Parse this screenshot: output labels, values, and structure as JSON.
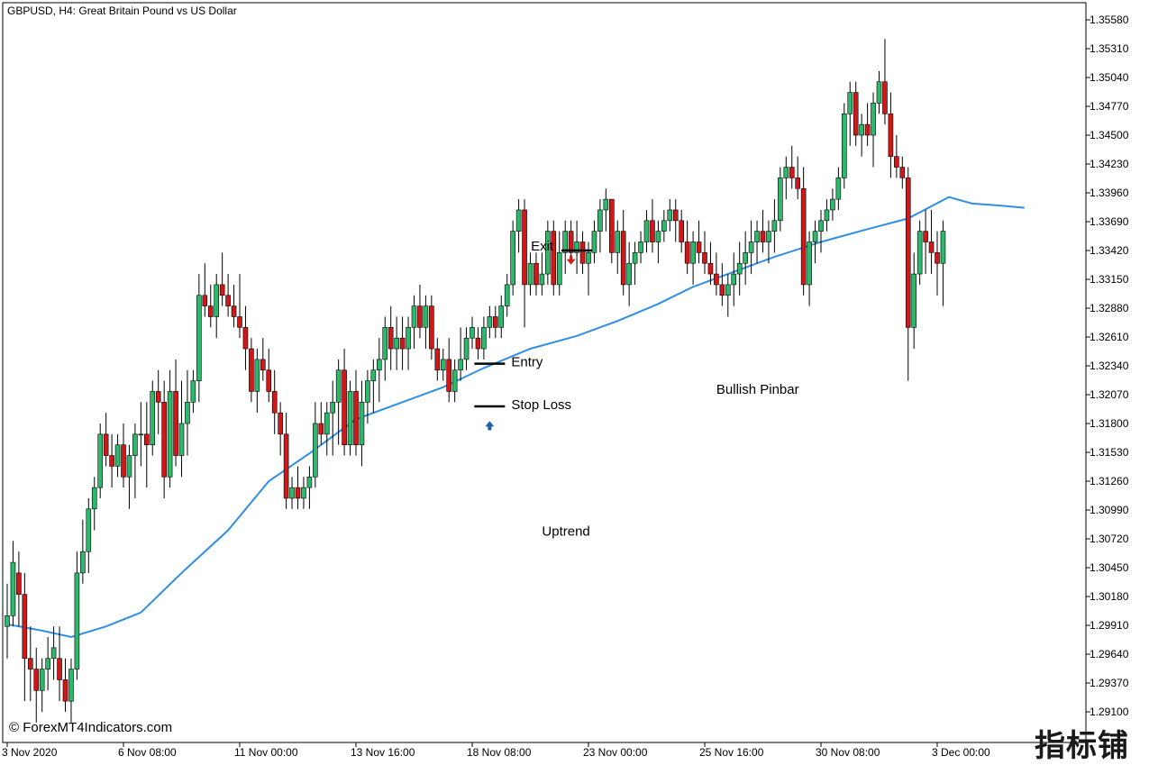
{
  "header": {
    "title": "GBPUSD, H4:  Great Britain Pound vs US Dollar"
  },
  "watermark": {
    "text": "© ForexMT4Indicators.com",
    "corner_logo": "指标铺"
  },
  "colors": {
    "bull": "#2eb86b",
    "bear": "#d01818",
    "ma": "#2f8fe8",
    "grid": "#000000",
    "background": "#ffffff"
  },
  "chart_data": {
    "type": "candlestick",
    "symbol": "GBPUSD",
    "timeframe": "H4",
    "title": "GBPUSD, H4:  Great Britain Pound vs US Dollar",
    "ylim": [
      1.2888,
      1.3572
    ],
    "y_ticks": [
      "1.35580",
      "1.35310",
      "1.35040",
      "1.34770",
      "1.34500",
      "1.34230",
      "1.33960",
      "1.33690",
      "1.33420",
      "1.33150",
      "1.32880",
      "1.32610",
      "1.32340",
      "1.32070",
      "1.31800",
      "1.31530",
      "1.31260",
      "1.30990",
      "1.30720",
      "1.30450",
      "1.30180",
      "1.29910",
      "1.29640",
      "1.29370",
      "1.29100"
    ],
    "x_ticks": [
      {
        "label": "3 Nov 2020",
        "index": 0
      },
      {
        "label": "6 Nov 08:00",
        "index": 20
      },
      {
        "label": "11 Nov 00:00",
        "index": 40
      },
      {
        "label": "13 Nov 16:00",
        "index": 60
      },
      {
        "label": "18 Nov 08:00",
        "index": 80
      },
      {
        "label": "23 Nov 00:00",
        "index": 100
      },
      {
        "label": "25 Nov 16:00",
        "index": 120
      },
      {
        "label": "30 Nov 08:00",
        "index": 140
      },
      {
        "label": "3 Dec 00:00",
        "index": 160
      }
    ],
    "candles": [
      [
        1.299,
        1.303,
        1.296,
        1.3
      ],
      [
        1.3,
        1.307,
        1.299,
        1.305
      ],
      [
        1.304,
        1.306,
        1.299,
        1.302
      ],
      [
        1.302,
        1.304,
        1.292,
        1.296
      ],
      [
        1.296,
        1.299,
        1.292,
        1.295
      ],
      [
        1.295,
        1.297,
        1.29,
        1.293
      ],
      [
        1.293,
        1.296,
        1.291,
        1.295
      ],
      [
        1.295,
        1.298,
        1.293,
        1.296
      ],
      [
        1.296,
        1.299,
        1.294,
        1.297
      ],
      [
        1.296,
        1.299,
        1.292,
        1.294
      ],
      [
        1.294,
        1.296,
        1.291,
        1.292
      ],
      [
        1.292,
        1.296,
        1.29,
        1.295
      ],
      [
        1.295,
        1.306,
        1.294,
        1.304
      ],
      [
        1.304,
        1.309,
        1.303,
        1.306
      ],
      [
        1.306,
        1.311,
        1.304,
        1.31
      ],
      [
        1.31,
        1.313,
        1.308,
        1.312
      ],
      [
        1.312,
        1.318,
        1.311,
        1.317
      ],
      [
        1.317,
        1.319,
        1.314,
        1.315
      ],
      [
        1.315,
        1.317,
        1.312,
        1.314
      ],
      [
        1.314,
        1.317,
        1.313,
        1.316
      ],
      [
        1.316,
        1.318,
        1.312,
        1.313
      ],
      [
        1.313,
        1.316,
        1.31,
        1.315
      ],
      [
        1.315,
        1.318,
        1.311,
        1.317
      ],
      [
        1.317,
        1.32,
        1.314,
        1.317
      ],
      [
        1.317,
        1.32,
        1.312,
        1.316
      ],
      [
        1.316,
        1.322,
        1.315,
        1.321
      ],
      [
        1.321,
        1.323,
        1.317,
        1.32
      ],
      [
        1.32,
        1.322,
        1.311,
        1.313
      ],
      [
        1.313,
        1.323,
        1.312,
        1.321
      ],
      [
        1.321,
        1.324,
        1.314,
        1.315
      ],
      [
        1.315,
        1.322,
        1.313,
        1.318
      ],
      [
        1.318,
        1.323,
        1.315,
        1.32
      ],
      [
        1.32,
        1.323,
        1.319,
        1.322
      ],
      [
        1.322,
        1.332,
        1.32,
        1.33
      ],
      [
        1.33,
        1.333,
        1.328,
        1.329
      ],
      [
        1.329,
        1.331,
        1.327,
        1.328
      ],
      [
        1.328,
        1.332,
        1.326,
        1.331
      ],
      [
        1.331,
        1.334,
        1.329,
        1.33
      ],
      [
        1.33,
        1.332,
        1.328,
        1.329
      ],
      [
        1.329,
        1.331,
        1.327,
        1.328
      ],
      [
        1.328,
        1.332,
        1.326,
        1.327
      ],
      [
        1.327,
        1.329,
        1.323,
        1.325
      ],
      [
        1.325,
        1.326,
        1.32,
        1.321
      ],
      [
        1.321,
        1.325,
        1.319,
        1.324
      ],
      [
        1.324,
        1.326,
        1.322,
        1.323
      ],
      [
        1.323,
        1.325,
        1.32,
        1.321
      ],
      [
        1.321,
        1.323,
        1.317,
        1.319
      ],
      [
        1.319,
        1.32,
        1.315,
        1.317
      ],
      [
        1.317,
        1.319,
        1.31,
        1.311
      ],
      [
        1.311,
        1.313,
        1.31,
        1.312
      ],
      [
        1.312,
        1.314,
        1.31,
        1.311
      ],
      [
        1.311,
        1.313,
        1.31,
        1.312
      ],
      [
        1.312,
        1.314,
        1.31,
        1.313
      ],
      [
        1.313,
        1.32,
        1.312,
        1.318
      ],
      [
        1.318,
        1.32,
        1.316,
        1.317
      ],
      [
        1.317,
        1.32,
        1.315,
        1.319
      ],
      [
        1.319,
        1.322,
        1.315,
        1.32
      ],
      [
        1.32,
        1.324,
        1.316,
        1.323
      ],
      [
        1.323,
        1.325,
        1.315,
        1.316
      ],
      [
        1.316,
        1.322,
        1.315,
        1.321
      ],
      [
        1.321,
        1.323,
        1.315,
        1.316
      ],
      [
        1.316,
        1.322,
        1.314,
        1.32
      ],
      [
        1.32,
        1.323,
        1.318,
        1.322
      ],
      [
        1.322,
        1.324,
        1.319,
        1.323
      ],
      [
        1.323,
        1.326,
        1.32,
        1.324
      ],
      [
        1.324,
        1.328,
        1.322,
        1.327
      ],
      [
        1.327,
        1.329,
        1.323,
        1.325
      ],
      [
        1.325,
        1.328,
        1.323,
        1.326
      ],
      [
        1.326,
        1.328,
        1.323,
        1.325
      ],
      [
        1.325,
        1.328,
        1.323,
        1.327
      ],
      [
        1.327,
        1.33,
        1.325,
        1.329
      ],
      [
        1.329,
        1.331,
        1.326,
        1.327
      ],
      [
        1.327,
        1.33,
        1.325,
        1.329
      ],
      [
        1.329,
        1.33,
        1.324,
        1.325
      ],
      [
        1.325,
        1.326,
        1.322,
        1.323
      ],
      [
        1.323,
        1.325,
        1.322,
        1.324
      ],
      [
        1.324,
        1.326,
        1.32,
        1.321
      ],
      [
        1.321,
        1.324,
        1.32,
        1.323
      ],
      [
        1.323,
        1.327,
        1.322,
        1.324
      ],
      [
        1.324,
        1.327,
        1.323,
        1.326
      ],
      [
        1.326,
        1.328,
        1.325,
        1.327
      ],
      [
        1.326,
        1.327,
        1.324,
        1.325
      ],
      [
        1.325,
        1.328,
        1.324,
        1.327
      ],
      [
        1.327,
        1.329,
        1.326,
        1.328
      ],
      [
        1.328,
        1.329,
        1.326,
        1.327
      ],
      [
        1.327,
        1.33,
        1.326,
        1.329
      ],
      [
        1.329,
        1.332,
        1.328,
        1.331
      ],
      [
        1.331,
        1.337,
        1.33,
        1.336
      ],
      [
        1.336,
        1.339,
        1.334,
        1.338
      ],
      [
        1.338,
        1.339,
        1.327,
        1.331
      ],
      [
        1.331,
        1.334,
        1.33,
        1.333
      ],
      [
        1.333,
        1.334,
        1.33,
        1.331
      ],
      [
        1.331,
        1.334,
        1.33,
        1.332
      ],
      [
        1.332,
        1.337,
        1.331,
        1.336
      ],
      [
        1.336,
        1.337,
        1.33,
        1.331
      ],
      [
        1.331,
        1.336,
        1.33,
        1.334
      ],
      [
        1.334,
        1.337,
        1.332,
        1.336
      ],
      [
        1.336,
        1.337,
        1.333,
        1.334
      ],
      [
        1.334,
        1.337,
        1.332,
        1.335
      ],
      [
        1.335,
        1.336,
        1.332,
        1.333
      ],
      [
        1.333,
        1.335,
        1.33,
        1.334
      ],
      [
        1.334,
        1.337,
        1.333,
        1.336
      ],
      [
        1.336,
        1.339,
        1.334,
        1.338
      ],
      [
        1.338,
        1.34,
        1.336,
        1.339
      ],
      [
        1.339,
        1.339,
        1.333,
        1.334
      ],
      [
        1.334,
        1.337,
        1.332,
        1.336
      ],
      [
        1.336,
        1.338,
        1.33,
        1.331
      ],
      [
        1.331,
        1.335,
        1.329,
        1.333
      ],
      [
        1.333,
        1.335,
        1.331,
        1.334
      ],
      [
        1.334,
        1.336,
        1.333,
        1.335
      ],
      [
        1.335,
        1.338,
        1.334,
        1.337
      ],
      [
        1.337,
        1.339,
        1.334,
        1.335
      ],
      [
        1.335,
        1.337,
        1.333,
        1.336
      ],
      [
        1.336,
        1.338,
        1.335,
        1.337
      ],
      [
        1.337,
        1.339,
        1.336,
        1.338
      ],
      [
        1.338,
        1.339,
        1.335,
        1.337
      ],
      [
        1.337,
        1.338,
        1.334,
        1.335
      ],
      [
        1.335,
        1.337,
        1.332,
        1.333
      ],
      [
        1.333,
        1.336,
        1.331,
        1.335
      ],
      [
        1.335,
        1.337,
        1.333,
        1.334
      ],
      [
        1.334,
        1.336,
        1.332,
        1.333
      ],
      [
        1.333,
        1.335,
        1.331,
        1.332
      ],
      [
        1.332,
        1.334,
        1.33,
        1.331
      ],
      [
        1.331,
        1.333,
        1.329,
        1.33
      ],
      [
        1.33,
        1.332,
        1.328,
        1.331
      ],
      [
        1.331,
        1.334,
        1.329,
        1.332
      ],
      [
        1.332,
        1.335,
        1.33,
        1.333
      ],
      [
        1.333,
        1.336,
        1.331,
        1.334
      ],
      [
        1.334,
        1.337,
        1.332,
        1.335
      ],
      [
        1.335,
        1.337,
        1.333,
        1.336
      ],
      [
        1.336,
        1.338,
        1.334,
        1.335
      ],
      [
        1.335,
        1.337,
        1.333,
        1.336
      ],
      [
        1.336,
        1.339,
        1.334,
        1.337
      ],
      [
        1.337,
        1.342,
        1.336,
        1.341
      ],
      [
        1.341,
        1.343,
        1.339,
        1.342
      ],
      [
        1.342,
        1.344,
        1.34,
        1.341
      ],
      [
        1.341,
        1.343,
        1.339,
        1.34
      ],
      [
        1.34,
        1.342,
        1.33,
        1.331
      ],
      [
        1.331,
        1.336,
        1.329,
        1.335
      ],
      [
        1.335,
        1.337,
        1.333,
        1.336
      ],
      [
        1.336,
        1.338,
        1.334,
        1.337
      ],
      [
        1.337,
        1.339,
        1.336,
        1.338
      ],
      [
        1.338,
        1.34,
        1.337,
        1.339
      ],
      [
        1.339,
        1.342,
        1.338,
        1.341
      ],
      [
        1.341,
        1.348,
        1.34,
        1.347
      ],
      [
        1.347,
        1.35,
        1.344,
        1.349
      ],
      [
        1.349,
        1.35,
        1.344,
        1.345
      ],
      [
        1.345,
        1.347,
        1.343,
        1.346
      ],
      [
        1.346,
        1.348,
        1.344,
        1.345
      ],
      [
        1.345,
        1.349,
        1.342,
        1.348
      ],
      [
        1.348,
        1.351,
        1.347,
        1.35
      ],
      [
        1.35,
        1.354,
        1.346,
        1.347
      ],
      [
        1.347,
        1.349,
        1.341,
        1.343
      ],
      [
        1.343,
        1.345,
        1.341,
        1.342
      ],
      [
        1.342,
        1.343,
        1.34,
        1.341
      ],
      [
        1.341,
        1.342,
        1.322,
        1.327
      ],
      [
        1.327,
        1.334,
        1.325,
        1.332
      ],
      [
        1.332,
        1.337,
        1.331,
        1.336
      ],
      [
        1.336,
        1.338,
        1.332,
        1.335
      ],
      [
        1.335,
        1.338,
        1.332,
        1.334
      ],
      [
        1.334,
        1.336,
        1.33,
        1.333
      ],
      [
        1.333,
        1.337,
        1.329,
        1.336
      ]
    ],
    "moving_average": [
      [
        0,
        1.2992
      ],
      [
        6,
        1.2986
      ],
      [
        11,
        1.298
      ],
      [
        17,
        1.299
      ],
      [
        23,
        1.3003
      ],
      [
        30,
        1.304
      ],
      [
        38,
        1.308
      ],
      [
        45,
        1.3126
      ],
      [
        52,
        1.3152
      ],
      [
        60,
        1.3184
      ],
      [
        68,
        1.32
      ],
      [
        75,
        1.3214
      ],
      [
        82,
        1.3232
      ],
      [
        90,
        1.325
      ],
      [
        98,
        1.3262
      ],
      [
        105,
        1.3276
      ],
      [
        112,
        1.3292
      ],
      [
        118,
        1.3308
      ],
      [
        125,
        1.3322
      ],
      [
        132,
        1.3336
      ],
      [
        140,
        1.335
      ],
      [
        148,
        1.3362
      ],
      [
        155,
        1.3372
      ],
      [
        162,
        1.3392
      ],
      [
        166,
        1.3386
      ],
      [
        171,
        1.3384
      ],
      [
        175,
        1.3382
      ]
    ],
    "annotations": [
      {
        "text": "Exit",
        "kind": "level",
        "index": 98,
        "price": 1.3342
      },
      {
        "text": "Entry",
        "kind": "level",
        "index": 83,
        "price": 1.3236
      },
      {
        "text": "Stop Loss",
        "kind": "level",
        "index": 83,
        "price": 1.3196
      },
      {
        "text": "Bullish Pinbar",
        "kind": "label",
        "index": 122,
        "price": 1.3208
      },
      {
        "text": "Uptrend",
        "kind": "label",
        "index": 92,
        "price": 1.3075
      }
    ],
    "markers": [
      {
        "type": "buy-arrow",
        "index": 83,
        "price": 1.3178,
        "color": "#1f5fa8"
      },
      {
        "type": "sell-arrow",
        "index": 97,
        "price": 1.3333,
        "color": "#d01818"
      }
    ]
  }
}
